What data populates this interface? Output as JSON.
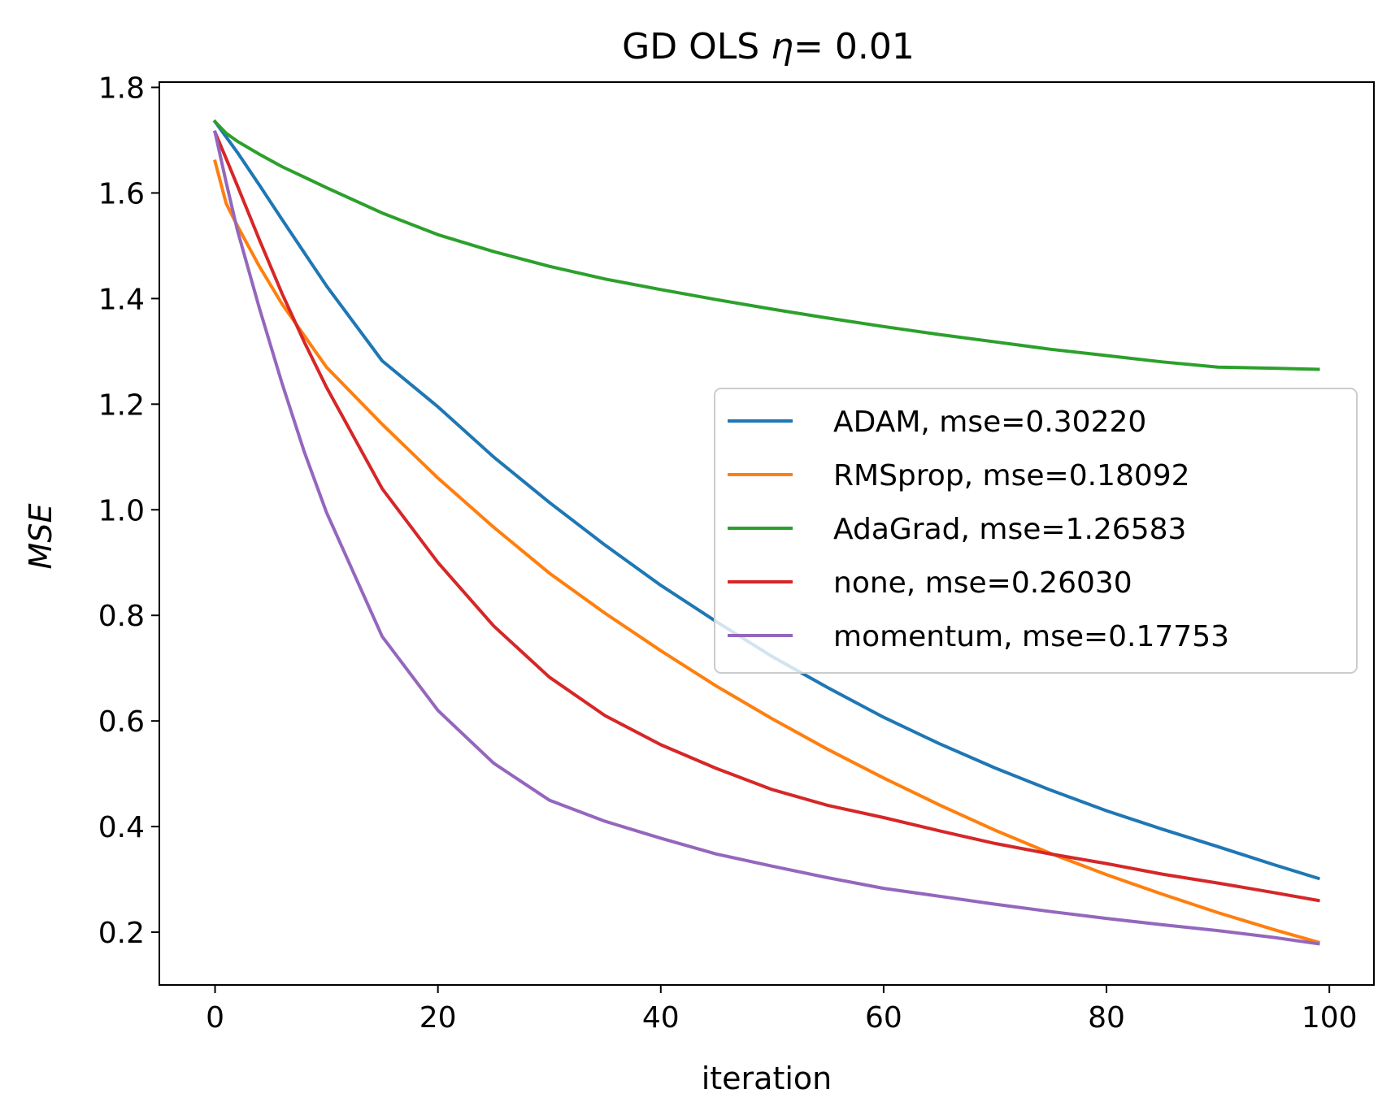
{
  "chart_data": {
    "type": "line",
    "title": "GD OLS",
    "title_eta": "η",
    "title_value": "=  0.01",
    "xlabel": "iteration",
    "ylabel": "MSE",
    "xlim": [
      -5,
      104
    ],
    "ylim": [
      0.1,
      1.81
    ],
    "x_ticks": [
      0,
      20,
      40,
      60,
      80,
      100
    ],
    "y_ticks": [
      0.2,
      0.4,
      0.6,
      0.8,
      1.0,
      1.2,
      1.4,
      1.6,
      1.8
    ],
    "x_tick_labels": [
      "0",
      "20",
      "40",
      "60",
      "80",
      "100"
    ],
    "y_tick_labels": [
      "0.2",
      "0.4",
      "0.6",
      "0.8",
      "1.0",
      "1.2",
      "1.4",
      "1.6",
      "1.8"
    ],
    "grid": false,
    "legend_position": "center-right",
    "x": [
      0,
      1,
      2,
      4,
      6,
      8,
      10,
      15,
      20,
      25,
      30,
      35,
      40,
      45,
      50,
      55,
      60,
      65,
      70,
      75,
      80,
      85,
      90,
      95,
      99
    ],
    "series": [
      {
        "name": "ADAM, mse=0.30220",
        "color": "#1f77b4",
        "values": [
          1.735,
          1.706,
          1.677,
          1.614,
          1.55,
          1.487,
          1.424,
          1.282,
          1.195,
          1.1,
          1.014,
          0.933,
          0.857,
          0.788,
          0.722,
          0.663,
          0.607,
          0.557,
          0.511,
          0.469,
          0.43,
          0.395,
          0.362,
          0.328,
          0.302
        ]
      },
      {
        "name": "RMSprop, mse=0.18092",
        "color": "#ff7f0e",
        "values": [
          1.66,
          1.58,
          1.538,
          1.46,
          1.39,
          1.33,
          1.27,
          1.162,
          1.06,
          0.967,
          0.88,
          0.804,
          0.733,
          0.666,
          0.604,
          0.546,
          0.492,
          0.441,
          0.393,
          0.349,
          0.309,
          0.272,
          0.237,
          0.205,
          0.181
        ]
      },
      {
        "name": "AdaGrad, mse=1.26583",
        "color": "#2ca02c",
        "values": [
          1.735,
          1.713,
          1.698,
          1.673,
          1.65,
          1.63,
          1.61,
          1.562,
          1.521,
          1.489,
          1.461,
          1.437,
          1.417,
          1.398,
          1.38,
          1.363,
          1.347,
          1.332,
          1.318,
          1.304,
          1.292,
          1.28,
          1.27,
          1.268,
          1.266
        ]
      },
      {
        "name": "none, mse=0.26030",
        "color": "#d62728",
        "values": [
          1.715,
          1.665,
          1.614,
          1.51,
          1.41,
          1.318,
          1.232,
          1.04,
          0.9,
          0.78,
          0.683,
          0.61,
          0.555,
          0.51,
          0.47,
          0.44,
          0.417,
          0.392,
          0.368,
          0.348,
          0.33,
          0.31,
          0.293,
          0.275,
          0.26
        ]
      },
      {
        "name": "momentum, mse=0.17753",
        "color": "#9467bd",
        "values": [
          1.715,
          1.62,
          1.53,
          1.38,
          1.24,
          1.11,
          0.995,
          0.76,
          0.62,
          0.52,
          0.45,
          0.41,
          0.378,
          0.348,
          0.325,
          0.303,
          0.283,
          0.268,
          0.253,
          0.239,
          0.226,
          0.214,
          0.203,
          0.19,
          0.178
        ]
      }
    ]
  }
}
